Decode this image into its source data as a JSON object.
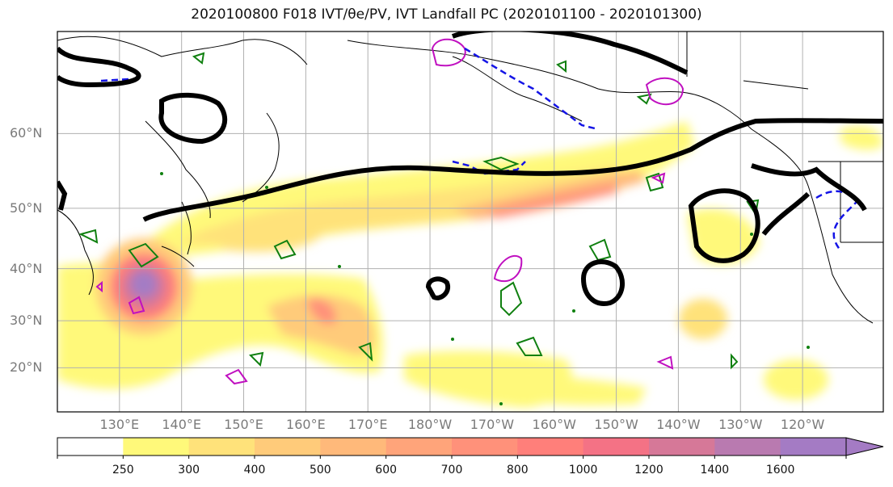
{
  "title": "2020100800 F018 IVT/θe/PV, IVT Landfall PC (2020101100 - 2020101300)",
  "map": {
    "lat_labels": [
      {
        "text": "60°N",
        "lat": 60
      },
      {
        "text": "50°N",
        "lat": 50
      },
      {
        "text": "40°N",
        "lat": 40
      },
      {
        "text": "30°N",
        "lat": 30
      },
      {
        "text": "20°N",
        "lat": 20
      }
    ],
    "lon_labels": [
      {
        "text": "130°E",
        "lon": 130
      },
      {
        "text": "140°E",
        "lon": 140
      },
      {
        "text": "150°E",
        "lon": 150
      },
      {
        "text": "160°E",
        "lon": 160
      },
      {
        "text": "170°E",
        "lon": 170
      },
      {
        "text": "180°W",
        "lon": 180
      },
      {
        "text": "170°W",
        "lon": 190
      },
      {
        "text": "160°W",
        "lon": 200
      },
      {
        "text": "150°W",
        "lon": 210
      },
      {
        "text": "140°W",
        "lon": 220
      },
      {
        "text": "130°W",
        "lon": 230
      },
      {
        "text": "120°W",
        "lon": 240
      }
    ],
    "extent": {
      "lon_min": 120,
      "lon_max": 253,
      "lat_min": 10,
      "lat_max": 70
    }
  },
  "colorbar": {
    "ticks": [
      "250",
      "300",
      "400",
      "500",
      "600",
      "700",
      "800",
      "1000",
      "1200",
      "1400",
      "1600"
    ],
    "colors": [
      "#ffffff",
      "#fff97a",
      "#ffe27a",
      "#ffcb7a",
      "#ffb97a",
      "#ffa47a",
      "#ff917a",
      "#ff7f7a",
      "#f47285",
      "#d67898",
      "#b97ab0",
      "#a47bc4"
    ]
  }
}
